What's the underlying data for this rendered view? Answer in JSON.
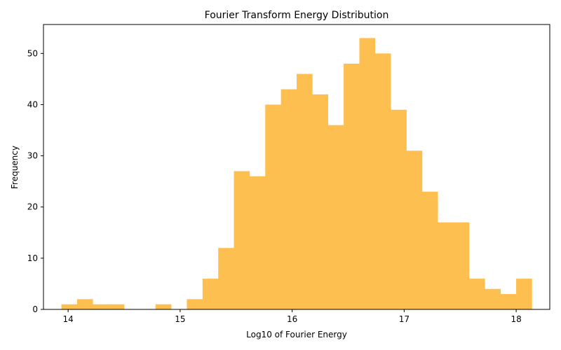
{
  "chart_data": {
    "type": "bar",
    "title": "Fourier Transform Energy Distribution",
    "xlabel": "Log10 of Fourier Energy",
    "ylabel": "Frequency",
    "xlim": [
      13.78,
      18.3
    ],
    "ylim": [
      0,
      55.65
    ],
    "x_ticks": [
      14,
      15,
      16,
      17,
      18
    ],
    "y_ticks": [
      0,
      10,
      20,
      30,
      40,
      50
    ],
    "grid": false,
    "legend": "none",
    "bar_color": "#fdbf4f",
    "bin_edges": [
      13.94,
      14.08,
      14.22,
      14.36,
      14.5,
      14.64,
      14.78,
      14.92,
      15.06,
      15.2,
      15.34,
      15.48,
      15.62,
      15.76,
      15.9,
      16.04,
      16.18,
      16.32,
      16.46,
      16.6,
      16.74,
      16.88,
      17.02,
      17.16,
      17.3,
      17.44,
      17.58,
      17.72,
      17.86,
      18.0,
      18.14
    ],
    "counts": [
      1,
      2,
      1,
      1,
      0,
      0,
      1,
      0,
      2,
      6,
      12,
      27,
      26,
      40,
      43,
      46,
      42,
      36,
      48,
      53,
      50,
      39,
      31,
      23,
      17,
      17,
      6,
      4,
      3,
      6
    ]
  }
}
